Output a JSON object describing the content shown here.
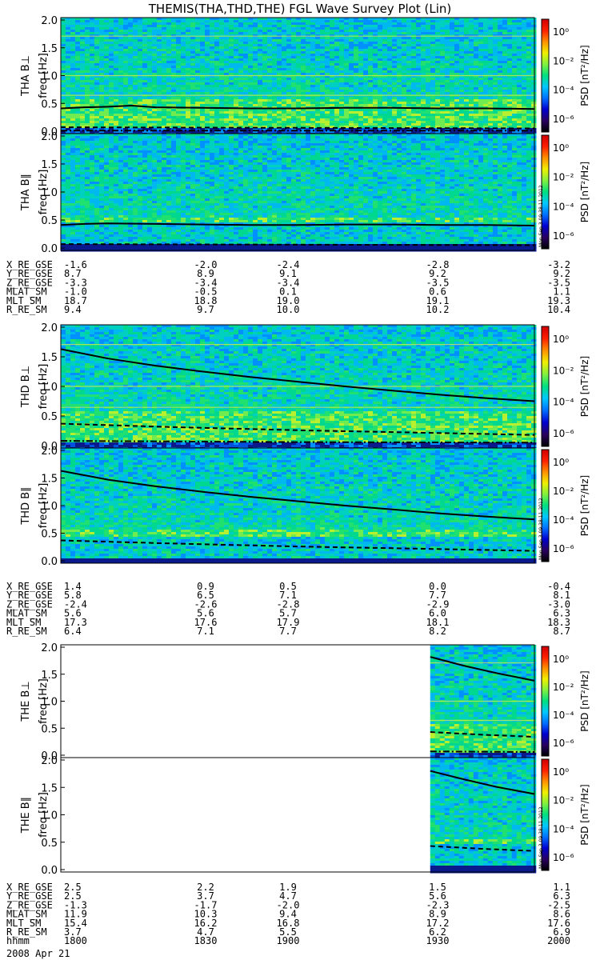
{
  "chart_data": {
    "type": "heatmap",
    "title": "THEMIS(THA,THD,THE) FGL Wave Survey Plot (Lin)",
    "date": "2008 Apr 21",
    "colorbar": {
      "label": "PSD [nT²/Hz]",
      "ticks": [
        "10⁰",
        "10⁻²",
        "10⁻⁴",
        "10⁻⁶"
      ],
      "colors": [
        "#000000",
        "#2a0060",
        "#0000d0",
        "#0070ff",
        "#00c8ff",
        "#00e080",
        "#80f040",
        "#f0f000",
        "#ff9000",
        "#ff2000",
        "#d00000"
      ]
    },
    "stamp": "Mon Sep 3 09:38:11 2012",
    "x_time_ticks": [
      "1800",
      "1830",
      "1900",
      "1930",
      "2000"
    ],
    "panels": [
      {
        "probe": "THA",
        "component": "B⊥",
        "ylabel": "THA B⊥",
        "yunit": "freq [Hz]",
        "ylim": [
          0,
          2.0
        ],
        "yticks": [
          "0.0",
          "0.5",
          "1.0",
          "1.5",
          "2.0"
        ],
        "data_start": 0.0,
        "lines": [
          {
            "style": "solid",
            "x": [
              0,
              0.05,
              0.1,
              0.15,
              0.2,
              0.3,
              0.4,
              0.5,
              0.6,
              0.7,
              0.8,
              0.9,
              1.0
            ],
            "y": [
              0.41,
              0.43,
              0.44,
              0.46,
              0.43,
              0.42,
              0.41,
              0.41,
              0.42,
              0.42,
              0.41,
              0.41,
              0.4
            ]
          },
          {
            "style": "dashed",
            "x": [
              0,
              0.5,
              1.0
            ],
            "y": [
              0.07,
              0.06,
              0.05
            ]
          },
          {
            "style": "dashdot",
            "x": [
              0,
              1.0
            ],
            "y": [
              0.01,
              0.01
            ]
          }
        ]
      },
      {
        "probe": "THA",
        "component": "B∥",
        "ylabel": "THA B∥",
        "yunit": "freq [Hz]",
        "ylim": [
          0,
          2.0
        ],
        "yticks": [
          "0.0",
          "0.5",
          "1.0",
          "1.5",
          "2.0"
        ],
        "data_start": 0.0,
        "lines": [
          {
            "style": "solid",
            "x": [
              0,
              0.05,
              0.1,
              0.2,
              0.3,
              0.4,
              0.5,
              0.6,
              0.7,
              0.8,
              0.9,
              1.0
            ],
            "y": [
              0.41,
              0.43,
              0.44,
              0.43,
              0.42,
              0.41,
              0.41,
              0.42,
              0.42,
              0.41,
              0.41,
              0.4
            ]
          },
          {
            "style": "dashed",
            "x": [
              0,
              0.5,
              1.0
            ],
            "y": [
              0.07,
              0.06,
              0.05
            ]
          }
        ]
      },
      {
        "probe": "THD",
        "component": "B⊥",
        "ylabel": "THD B⊥",
        "yunit": "freq [Hz]",
        "ylim": [
          0,
          2.0
        ],
        "yticks": [
          "0.0",
          "0.5",
          "1.0",
          "1.5",
          "2.0"
        ],
        "data_start": 0.0,
        "lines": [
          {
            "style": "solid",
            "x": [
              0,
              0.1,
              0.2,
              0.3,
              0.4,
              0.5,
              0.6,
              0.7,
              0.8,
              0.9,
              1.0
            ],
            "y": [
              1.63,
              1.47,
              1.35,
              1.25,
              1.16,
              1.08,
              1.0,
              0.93,
              0.86,
              0.8,
              0.75
            ]
          },
          {
            "style": "dashed",
            "x": [
              0,
              0.25,
              0.5,
              0.75,
              1.0
            ],
            "y": [
              0.37,
              0.31,
              0.26,
              0.22,
              0.18
            ]
          },
          {
            "style": "dashdot",
            "x": [
              0,
              0.5,
              1.0
            ],
            "y": [
              0.08,
              0.06,
              0.05
            ]
          }
        ]
      },
      {
        "probe": "THD",
        "component": "B∥",
        "ylabel": "THD B∥",
        "yunit": "freq [Hz]",
        "ylim": [
          0,
          2.0
        ],
        "yticks": [
          "0.0",
          "0.5",
          "1.0",
          "1.5",
          "2.0"
        ],
        "data_start": 0.0,
        "lines": [
          {
            "style": "solid",
            "x": [
              0,
              0.1,
              0.2,
              0.3,
              0.4,
              0.5,
              0.6,
              0.7,
              0.8,
              0.9,
              1.0
            ],
            "y": [
              1.63,
              1.47,
              1.35,
              1.25,
              1.16,
              1.08,
              1.0,
              0.93,
              0.86,
              0.8,
              0.75
            ]
          },
          {
            "style": "dashed",
            "x": [
              0,
              0.25,
              0.5,
              0.75,
              1.0
            ],
            "y": [
              0.37,
              0.31,
              0.26,
              0.22,
              0.18
            ]
          }
        ]
      },
      {
        "probe": "THE",
        "component": "B⊥",
        "ylabel": "THE B⊥",
        "yunit": "freq [Hz]",
        "ylim": [
          0,
          2.0
        ],
        "yticks": [
          "0.0",
          "0.5",
          "1.0",
          "1.5",
          "2.0"
        ],
        "data_start": 0.78,
        "lines": [
          {
            "style": "solid",
            "x": [
              0.78,
              0.85,
              0.92,
              1.0
            ],
            "y": [
              1.82,
              1.66,
              1.52,
              1.38
            ]
          },
          {
            "style": "dashed",
            "x": [
              0.78,
              0.89,
              1.0
            ],
            "y": [
              0.43,
              0.38,
              0.34
            ]
          },
          {
            "style": "dashdot",
            "x": [
              0.78,
              1.0
            ],
            "y": [
              0.07,
              0.06
            ]
          }
        ]
      },
      {
        "probe": "THE",
        "component": "B∥",
        "ylabel": "THE B∥",
        "yunit": "freq [Hz]",
        "ylim": [
          0,
          2.0
        ],
        "yticks": [
          "0.0",
          "0.5",
          "1.0",
          "1.5",
          "2.0"
        ],
        "data_start": 0.78,
        "lines": [
          {
            "style": "solid",
            "x": [
              0.78,
              0.85,
              0.92,
              1.0
            ],
            "y": [
              1.8,
              1.65,
              1.51,
              1.38
            ]
          },
          {
            "style": "dashed",
            "x": [
              0.78,
              0.89,
              1.0
            ],
            "y": [
              0.43,
              0.38,
              0.34
            ]
          }
        ]
      }
    ],
    "ephemeris": [
      {
        "rows": [
          {
            "label": "X_RE_GSE",
            "values": [
              "-1.6",
              "-2.0",
              "-2.4",
              "-2.8",
              "-3.2"
            ]
          },
          {
            "label": "Y_RE_GSE",
            "values": [
              "8.7",
              "8.9",
              "9.1",
              "9.2",
              "9.2"
            ]
          },
          {
            "label": "Z_RE_GSE",
            "values": [
              "-3.3",
              "-3.4",
              "-3.4",
              "-3.5",
              "-3.5"
            ]
          },
          {
            "label": "MLAT_SM",
            "values": [
              "-1.0",
              "-0.5",
              "0.1",
              "0.6",
              "1.1"
            ]
          },
          {
            "label": "MLT_SM",
            "values": [
              "18.7",
              "18.8",
              "19.0",
              "19.1",
              "19.3"
            ]
          },
          {
            "label": "R_RE_SM",
            "values": [
              "9.4",
              "9.7",
              "10.0",
              "10.2",
              "10.4"
            ]
          }
        ]
      },
      {
        "rows": [
          {
            "label": "X_RE_GSE",
            "values": [
              "1.4",
              "0.9",
              "0.5",
              "0.0",
              "-0.4"
            ]
          },
          {
            "label": "Y_RE_GSE",
            "values": [
              "5.8",
              "6.5",
              "7.1",
              "7.7",
              "8.1"
            ]
          },
          {
            "label": "Z_RE_GSE",
            "values": [
              "-2.4",
              "-2.6",
              "-2.8",
              "-2.9",
              "-3.0"
            ]
          },
          {
            "label": "MLAT_SM",
            "values": [
              "5.6",
              "5.6",
              "5.7",
              "6.0",
              "6.3"
            ]
          },
          {
            "label": "MLT_SM",
            "values": [
              "17.3",
              "17.6",
              "17.9",
              "18.1",
              "18.3"
            ]
          },
          {
            "label": "R_RE_SM",
            "values": [
              "6.4",
              "7.1",
              "7.7",
              "8.2",
              "8.7"
            ]
          }
        ]
      },
      {
        "rows": [
          {
            "label": "X_RE_GSE",
            "values": [
              "2.5",
              "2.2",
              "1.9",
              "1.5",
              "1.1"
            ]
          },
          {
            "label": "Y_RE_GSE",
            "values": [
              "2.5",
              "3.7",
              "4.7",
              "5.6",
              "6.3"
            ]
          },
          {
            "label": "Z_RE_GSE",
            "values": [
              "-1.3",
              "-1.7",
              "-2.0",
              "-2.3",
              "-2.5"
            ]
          },
          {
            "label": "MLAT_SM",
            "values": [
              "11.9",
              "10.3",
              "9.4",
              "8.9",
              "8.6"
            ]
          },
          {
            "label": "MLT_SM",
            "values": [
              "15.4",
              "16.2",
              "16.8",
              "17.2",
              "17.6"
            ]
          },
          {
            "label": "R_RE_SM",
            "values": [
              "3.7",
              "4.7",
              "5.5",
              "6.2",
              "6.9"
            ]
          },
          {
            "label": "hhmm",
            "values": [
              "1800",
              "1830",
              "1900",
              "1930",
              "2000"
            ]
          }
        ]
      }
    ]
  }
}
